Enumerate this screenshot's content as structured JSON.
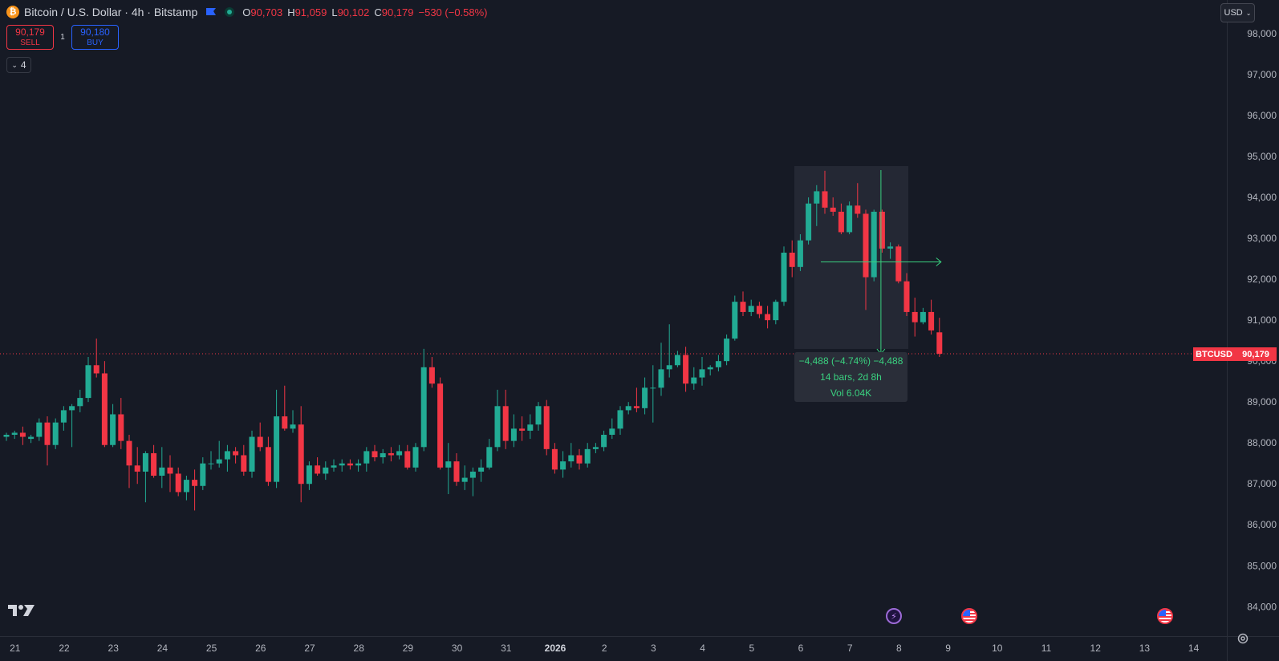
{
  "header": {
    "icon_glyph": "₿",
    "symbol_title": "Bitcoin / U.S. Dollar · 4h · Bitstamp",
    "ohlc": {
      "o_key": "O",
      "o": "90,703",
      "h_key": "H",
      "h": "91,059",
      "l_key": "L",
      "l": "90,102",
      "c_key": "C",
      "c": "90,179",
      "change": "−530 (−0.58%)"
    },
    "flag_icon": "flag-icon",
    "status_icon": "market-status-icon"
  },
  "trade": {
    "sell_price": "90,179",
    "sell_label": "SELL",
    "spread": "1",
    "buy_price": "90,180",
    "buy_label": "BUY"
  },
  "indicators_toggle": {
    "chevron": "⌄",
    "count": "4"
  },
  "currency_select": {
    "value": "USD",
    "chevron": "⌄"
  },
  "measure": {
    "line1": "−4,488 (−4.74%) −4,488",
    "line2": "14 bars, 2d 8h",
    "line3": "Vol 6.04K"
  },
  "price_tag": {
    "symbol": "BTCUSD",
    "price": "90,179"
  },
  "colors": {
    "up": "#22ab94",
    "down": "#f23645",
    "background": "#161a25",
    "measure": "#3ad07f",
    "sell": "#f23645",
    "buy": "#2962ff"
  },
  "chart_data": {
    "type": "candlestick",
    "symbol": "BTCUSD",
    "interval": "4h",
    "ylim": [
      83500,
      98600
    ],
    "y_ticks": [
      "98,000",
      "97,000",
      "96,000",
      "95,000",
      "94,000",
      "93,000",
      "92,000",
      "91,000",
      "90,000",
      "89,000",
      "88,000",
      "87,000",
      "86,000",
      "85,000",
      "84,000"
    ],
    "x_ticks": [
      {
        "label": "21",
        "bar": -1
      },
      {
        "label": "22",
        "bar": 5
      },
      {
        "label": "23",
        "bar": 11
      },
      {
        "label": "24",
        "bar": 17
      },
      {
        "label": "25",
        "bar": 23
      },
      {
        "label": "26",
        "bar": 29
      },
      {
        "label": "27",
        "bar": 35
      },
      {
        "label": "28",
        "bar": 41
      },
      {
        "label": "29",
        "bar": 47
      },
      {
        "label": "30",
        "bar": 53
      },
      {
        "label": "31",
        "bar": 59
      },
      {
        "label": "2026",
        "bar": 65
      },
      {
        "label": "2",
        "bar": 71
      },
      {
        "label": "3",
        "bar": 77
      },
      {
        "label": "4",
        "bar": 83
      },
      {
        "label": "5",
        "bar": 89
      },
      {
        "label": "6",
        "bar": 95
      },
      {
        "label": "7",
        "bar": 101
      },
      {
        "label": "8",
        "bar": 107
      },
      {
        "label": "9",
        "bar": 113
      },
      {
        "label": "10",
        "bar": 119
      },
      {
        "label": "11",
        "bar": 125
      },
      {
        "label": "12",
        "bar": 131
      },
      {
        "label": "13",
        "bar": 137
      },
      {
        "label": "14",
        "bar": 143
      }
    ],
    "last_price": 90179,
    "candles": [
      {
        "o": 88150,
        "h": 88250,
        "l": 88050,
        "c": 88200
      },
      {
        "o": 88200,
        "h": 88300,
        "l": 88100,
        "c": 88250
      },
      {
        "o": 88250,
        "h": 88400,
        "l": 87950,
        "c": 88150
      },
      {
        "o": 88100,
        "h": 88200,
        "l": 88000,
        "c": 88150
      },
      {
        "o": 88150,
        "h": 88600,
        "l": 88050,
        "c": 88500
      },
      {
        "o": 88500,
        "h": 88650,
        "l": 87450,
        "c": 87950
      },
      {
        "o": 87950,
        "h": 88600,
        "l": 87850,
        "c": 88500
      },
      {
        "o": 88500,
        "h": 88900,
        "l": 88300,
        "c": 88800
      },
      {
        "o": 88800,
        "h": 88950,
        "l": 87900,
        "c": 88900
      },
      {
        "o": 88900,
        "h": 89300,
        "l": 88750,
        "c": 89100
      },
      {
        "o": 89100,
        "h": 90100,
        "l": 89000,
        "c": 89900
      },
      {
        "o": 89900,
        "h": 90550,
        "l": 89600,
        "c": 89700
      },
      {
        "o": 89700,
        "h": 90000,
        "l": 87900,
        "c": 87950
      },
      {
        "o": 87950,
        "h": 88950,
        "l": 87900,
        "c": 88700
      },
      {
        "o": 88700,
        "h": 89100,
        "l": 87850,
        "c": 88050
      },
      {
        "o": 88050,
        "h": 88200,
        "l": 86900,
        "c": 87450
      },
      {
        "o": 87450,
        "h": 87900,
        "l": 87000,
        "c": 87300
      },
      {
        "o": 87300,
        "h": 87800,
        "l": 86550,
        "c": 87750
      },
      {
        "o": 87750,
        "h": 87950,
        "l": 87150,
        "c": 87200
      },
      {
        "o": 87200,
        "h": 87900,
        "l": 86900,
        "c": 87400
      },
      {
        "o": 87400,
        "h": 87700,
        "l": 86800,
        "c": 87250
      },
      {
        "o": 87250,
        "h": 87400,
        "l": 86700,
        "c": 86800
      },
      {
        "o": 86800,
        "h": 87200,
        "l": 86600,
        "c": 87100
      },
      {
        "o": 87100,
        "h": 87350,
        "l": 86350,
        "c": 86950
      },
      {
        "o": 86950,
        "h": 87650,
        "l": 86850,
        "c": 87500
      },
      {
        "o": 87500,
        "h": 87800,
        "l": 87350,
        "c": 87500
      },
      {
        "o": 87500,
        "h": 88050,
        "l": 87400,
        "c": 87600
      },
      {
        "o": 87600,
        "h": 87950,
        "l": 87300,
        "c": 87800
      },
      {
        "o": 87800,
        "h": 87900,
        "l": 87500,
        "c": 87700
      },
      {
        "o": 87700,
        "h": 87950,
        "l": 87200,
        "c": 87300
      },
      {
        "o": 87300,
        "h": 88300,
        "l": 87150,
        "c": 88150
      },
      {
        "o": 88150,
        "h": 88500,
        "l": 87800,
        "c": 87900
      },
      {
        "o": 87900,
        "h": 88150,
        "l": 86950,
        "c": 87050
      },
      {
        "o": 87050,
        "h": 89300,
        "l": 86900,
        "c": 88650
      },
      {
        "o": 88650,
        "h": 89400,
        "l": 88300,
        "c": 88350
      },
      {
        "o": 88350,
        "h": 88800,
        "l": 88250,
        "c": 88450
      },
      {
        "o": 88450,
        "h": 88900,
        "l": 86550,
        "c": 87000
      },
      {
        "o": 87000,
        "h": 87550,
        "l": 86850,
        "c": 87450
      },
      {
        "o": 87450,
        "h": 87650,
        "l": 87200,
        "c": 87250
      },
      {
        "o": 87250,
        "h": 87550,
        "l": 87100,
        "c": 87400
      },
      {
        "o": 87400,
        "h": 87600,
        "l": 87300,
        "c": 87450
      },
      {
        "o": 87450,
        "h": 87600,
        "l": 87300,
        "c": 87500
      },
      {
        "o": 87500,
        "h": 87600,
        "l": 87350,
        "c": 87450
      },
      {
        "o": 87450,
        "h": 87600,
        "l": 87300,
        "c": 87500
      },
      {
        "o": 87500,
        "h": 87900,
        "l": 87300,
        "c": 87800
      },
      {
        "o": 87800,
        "h": 87950,
        "l": 87550,
        "c": 87650
      },
      {
        "o": 87650,
        "h": 87850,
        "l": 87500,
        "c": 87750
      },
      {
        "o": 87750,
        "h": 87900,
        "l": 87550,
        "c": 87700
      },
      {
        "o": 87700,
        "h": 87950,
        "l": 87600,
        "c": 87800
      },
      {
        "o": 87800,
        "h": 87950,
        "l": 87350,
        "c": 87400
      },
      {
        "o": 87400,
        "h": 88000,
        "l": 87300,
        "c": 87900
      },
      {
        "o": 87900,
        "h": 90300,
        "l": 87800,
        "c": 89850
      },
      {
        "o": 89850,
        "h": 90100,
        "l": 89350,
        "c": 89450
      },
      {
        "o": 89450,
        "h": 89600,
        "l": 87350,
        "c": 87400
      },
      {
        "o": 87400,
        "h": 88000,
        "l": 86750,
        "c": 87550
      },
      {
        "o": 87550,
        "h": 87750,
        "l": 86950,
        "c": 87050
      },
      {
        "o": 87050,
        "h": 87450,
        "l": 86850,
        "c": 87150
      },
      {
        "o": 87150,
        "h": 87400,
        "l": 86700,
        "c": 87300
      },
      {
        "o": 87300,
        "h": 87600,
        "l": 87050,
        "c": 87400
      },
      {
        "o": 87400,
        "h": 88100,
        "l": 87350,
        "c": 87900
      },
      {
        "o": 87900,
        "h": 89300,
        "l": 87800,
        "c": 88900
      },
      {
        "o": 88900,
        "h": 89300,
        "l": 87850,
        "c": 88050
      },
      {
        "o": 88050,
        "h": 88700,
        "l": 87900,
        "c": 88350
      },
      {
        "o": 88350,
        "h": 88650,
        "l": 88050,
        "c": 88300
      },
      {
        "o": 88300,
        "h": 88700,
        "l": 88100,
        "c": 88450
      },
      {
        "o": 88450,
        "h": 89000,
        "l": 88300,
        "c": 88900
      },
      {
        "o": 88900,
        "h": 89050,
        "l": 87700,
        "c": 87850
      },
      {
        "o": 87850,
        "h": 88000,
        "l": 87250,
        "c": 87350
      },
      {
        "o": 87350,
        "h": 87800,
        "l": 87150,
        "c": 87550
      },
      {
        "o": 87550,
        "h": 88000,
        "l": 87400,
        "c": 87700
      },
      {
        "o": 87700,
        "h": 87850,
        "l": 87350,
        "c": 87500
      },
      {
        "o": 87500,
        "h": 88000,
        "l": 87400,
        "c": 87850
      },
      {
        "o": 87850,
        "h": 88000,
        "l": 87750,
        "c": 87900
      },
      {
        "o": 87900,
        "h": 88300,
        "l": 87800,
        "c": 88200
      },
      {
        "o": 88200,
        "h": 88600,
        "l": 88100,
        "c": 88350
      },
      {
        "o": 88350,
        "h": 88900,
        "l": 88200,
        "c": 88800
      },
      {
        "o": 88800,
        "h": 89000,
        "l": 88700,
        "c": 88900
      },
      {
        "o": 88900,
        "h": 89350,
        "l": 88750,
        "c": 88850
      },
      {
        "o": 88850,
        "h": 89600,
        "l": 88700,
        "c": 89350
      },
      {
        "o": 89350,
        "h": 89900,
        "l": 88500,
        "c": 89350
      },
      {
        "o": 89350,
        "h": 90450,
        "l": 89150,
        "c": 89800
      },
      {
        "o": 89800,
        "h": 90900,
        "l": 89600,
        "c": 89900
      },
      {
        "o": 89900,
        "h": 90250,
        "l": 89850,
        "c": 90150
      },
      {
        "o": 90150,
        "h": 90350,
        "l": 89250,
        "c": 89450
      },
      {
        "o": 89450,
        "h": 89850,
        "l": 89300,
        "c": 89600
      },
      {
        "o": 89600,
        "h": 90100,
        "l": 89400,
        "c": 89800
      },
      {
        "o": 89800,
        "h": 89900,
        "l": 89650,
        "c": 89850
      },
      {
        "o": 89850,
        "h": 90150,
        "l": 89750,
        "c": 90000
      },
      {
        "o": 90000,
        "h": 90650,
        "l": 89900,
        "c": 90550
      },
      {
        "o": 90550,
        "h": 91600,
        "l": 90500,
        "c": 91450
      },
      {
        "o": 91450,
        "h": 91700,
        "l": 91100,
        "c": 91200
      },
      {
        "o": 91200,
        "h": 91500,
        "l": 91100,
        "c": 91350
      },
      {
        "o": 91350,
        "h": 91450,
        "l": 91050,
        "c": 91150
      },
      {
        "o": 91150,
        "h": 91350,
        "l": 90800,
        "c": 91000
      },
      {
        "o": 91000,
        "h": 91500,
        "l": 90900,
        "c": 91450
      },
      {
        "o": 91450,
        "h": 92800,
        "l": 91350,
        "c": 92650
      },
      {
        "o": 92650,
        "h": 92950,
        "l": 92050,
        "c": 92300
      },
      {
        "o": 92300,
        "h": 93100,
        "l": 92200,
        "c": 92950
      },
      {
        "o": 92950,
        "h": 94000,
        "l": 92850,
        "c": 93850
      },
      {
        "o": 93850,
        "h": 94300,
        "l": 93300,
        "c": 94150
      },
      {
        "o": 94150,
        "h": 94650,
        "l": 93600,
        "c": 93750
      },
      {
        "o": 93750,
        "h": 94000,
        "l": 93550,
        "c": 93650
      },
      {
        "o": 93650,
        "h": 93850,
        "l": 93100,
        "c": 93150
      },
      {
        "o": 93150,
        "h": 93900,
        "l": 93100,
        "c": 93800
      },
      {
        "o": 93800,
        "h": 94350,
        "l": 93500,
        "c": 93600
      },
      {
        "o": 93600,
        "h": 93700,
        "l": 91250,
        "c": 92050
      },
      {
        "o": 92050,
        "h": 93700,
        "l": 91950,
        "c": 93650
      },
      {
        "o": 93650,
        "h": 93700,
        "l": 92650,
        "c": 92750
      },
      {
        "o": 92750,
        "h": 92900,
        "l": 92500,
        "c": 92800
      },
      {
        "o": 92800,
        "h": 92850,
        "l": 91900,
        "c": 91950
      },
      {
        "o": 91950,
        "h": 92150,
        "l": 91100,
        "c": 91200
      },
      {
        "o": 91200,
        "h": 91550,
        "l": 90600,
        "c": 90950
      },
      {
        "o": 90950,
        "h": 91300,
        "l": 90900,
        "c": 91200
      },
      {
        "o": 91200,
        "h": 91500,
        "l": 90650,
        "c": 90750
      },
      {
        "o": 90703,
        "h": 91059,
        "l": 90102,
        "c": 90179
      }
    ],
    "measure": {
      "from_bar": 100,
      "to_bar": 114,
      "from_price": 94667,
      "to_price": 90179
    }
  }
}
